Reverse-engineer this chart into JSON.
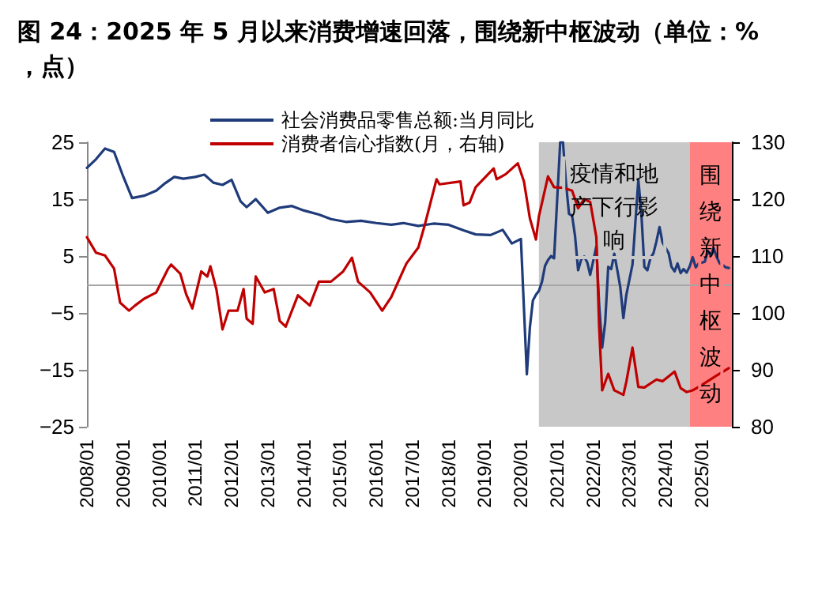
{
  "chart_data": {
    "type": "line",
    "title": "图 24：2025 年 5 月以来消费增速回落，围绕新中枢波动（单位：%，点）",
    "xlim": [
      "2008-01",
      "2025-11"
    ],
    "xticks": [
      {
        "value": "2008-01",
        "label": "2008/01"
      },
      {
        "value": "2009-01",
        "label": "2009/01"
      },
      {
        "value": "2010-01",
        "label": "2010/01"
      },
      {
        "value": "2011-01",
        "label": "2011/01"
      },
      {
        "value": "2012-01",
        "label": "2012/01"
      },
      {
        "value": "2013-01",
        "label": "2013/01"
      },
      {
        "value": "2014-01",
        "label": "2014/01"
      },
      {
        "value": "2015-01",
        "label": "2015/01"
      },
      {
        "value": "2016-01",
        "label": "2016/01"
      },
      {
        "value": "2017-01",
        "label": "2017/01"
      },
      {
        "value": "2018-01",
        "label": "2018/01"
      },
      {
        "value": "2019-01",
        "label": "2019/01"
      },
      {
        "value": "2020-01",
        "label": "2020/01"
      },
      {
        "value": "2021-01",
        "label": "2021/01"
      },
      {
        "value": "2022-01",
        "label": "2022/01"
      },
      {
        "value": "2023-01",
        "label": "2023/01"
      },
      {
        "value": "2024-01",
        "label": "2024/01"
      },
      {
        "value": "2025-01",
        "label": "2025/01"
      }
    ],
    "ylim": [
      -25,
      25
    ],
    "yticks": [
      {
        "value": -25,
        "label": "−25"
      },
      {
        "value": -15,
        "label": "−15"
      },
      {
        "value": -5,
        "label": "−5"
      },
      5,
      15,
      25
    ],
    "y2lim": [
      80,
      130
    ],
    "y2ticks": [
      80,
      90,
      100,
      110,
      120,
      130
    ],
    "legend": "top",
    "grid": false,
    "marker": "none",
    "line_style": "solid",
    "ref_lines": [
      {
        "axis": "y",
        "value": 0,
        "color": "#a6a6a6"
      }
    ],
    "bands": [
      {
        "axis": "x",
        "from": "2020-07",
        "to": "2024-09",
        "label": "疫情和地产下行影响",
        "color": "#c8c8c8"
      },
      {
        "axis": "x",
        "from": "2024-09",
        "to": "2025-11",
        "label": "围绕新中枢波动",
        "color": "#ff8080"
      }
    ],
    "series": [
      {
        "name": "社会消费品零售总额:当月同比",
        "color": "#1f3b7a",
        "x": [
          "2008-01",
          "2008-04",
          "2008-07",
          "2008-10",
          "2009-01",
          "2009-04",
          "2009-08",
          "2009-12",
          "2010-03",
          "2010-06",
          "2010-09",
          "2011-01",
          "2011-04",
          "2011-07",
          "2011-10",
          "2012-01",
          "2012-04",
          "2012-06",
          "2012-09",
          "2013-01",
          "2013-05",
          "2013-09",
          "2014-01",
          "2014-06",
          "2014-10",
          "2015-03",
          "2015-08",
          "2016-01",
          "2016-06",
          "2016-10",
          "2017-03",
          "2017-08",
          "2018-01",
          "2018-06",
          "2018-10",
          "2019-03",
          "2019-07",
          "2019-10",
          "2020-01",
          "2020-03",
          "2020-04",
          "2020-05",
          "2020-06",
          "2020-07",
          "2020-08",
          "2020-09",
          "2020-10",
          "2020-11",
          "2020-12",
          "2021-02",
          "2021-03",
          "2021-04",
          "2021-05",
          "2021-06",
          "2021-07",
          "2021-08",
          "2021-09",
          "2021-10",
          "2021-11",
          "2021-12",
          "2022-02",
          "2022-03",
          "2022-04",
          "2022-05",
          "2022-06",
          "2022-07",
          "2022-08",
          "2022-09",
          "2022-10",
          "2022-11",
          "2022-12",
          "2023-02",
          "2023-03",
          "2023-04",
          "2023-05",
          "2023-06",
          "2023-07",
          "2023-08",
          "2023-09",
          "2023-10",
          "2023-11",
          "2023-12",
          "2024-02",
          "2024-03",
          "2024-04",
          "2024-05",
          "2024-06",
          "2024-07",
          "2024-08",
          "2024-09",
          "2024-10",
          "2024-11",
          "2024-12",
          "2025-02",
          "2025-03",
          "2025-04",
          "2025-05",
          "2025-06",
          "2025-07",
          "2025-08",
          "2025-09",
          "2025-10"
        ],
        "values": [
          20.5,
          22.0,
          23.9,
          23.3,
          19.0,
          15.2,
          15.6,
          16.5,
          17.8,
          18.9,
          18.6,
          18.9,
          19.3,
          17.9,
          17.5,
          18.4,
          14.6,
          13.6,
          15.0,
          12.6,
          13.5,
          13.8,
          13.0,
          12.3,
          11.5,
          11.0,
          11.2,
          10.8,
          10.5,
          10.8,
          10.3,
          10.7,
          10.5,
          9.5,
          8.8,
          8.7,
          9.6,
          7.2,
          8.0,
          -15.8,
          -7.5,
          -2.8,
          -1.8,
          -1.1,
          0.5,
          3.3,
          4.3,
          5.0,
          4.6,
          25,
          25,
          17.7,
          12.4,
          12.1,
          8.5,
          2.5,
          4.4,
          4.9,
          3.9,
          1.7,
          6.7,
          -3.5,
          -11.1,
          -6.7,
          3.1,
          2.7,
          5.4,
          2.5,
          -0.5,
          -5.9,
          -1.8,
          3.5,
          10.6,
          18.4,
          12.7,
          3.1,
          2.5,
          4.6,
          5.5,
          7.6,
          10.1,
          7.4,
          5.5,
          3.1,
          2.3,
          3.7,
          2.0,
          2.7,
          2.1,
          3.2,
          4.8,
          3.0,
          3.7,
          4.0,
          5.9,
          5.1,
          6.4,
          4.8,
          3.7,
          3.4,
          3.0,
          2.9
        ]
      },
      {
        "name": "消费者信心指数(月，右轴)",
        "color": "#c00000",
        "axis": "y2",
        "x": [
          "2008-01",
          "2008-04",
          "2008-07",
          "2008-10",
          "2008-12",
          "2009-03",
          "2009-05",
          "2009-08",
          "2009-12",
          "2010-04",
          "2010-05",
          "2010-08",
          "2010-10",
          "2010-12",
          "2011-03",
          "2011-05",
          "2011-06",
          "2011-08",
          "2011-10",
          "2011-12",
          "2012-03",
          "2012-05",
          "2012-06",
          "2012-08",
          "2012-09",
          "2012-12",
          "2013-03",
          "2013-05",
          "2013-07",
          "2013-11",
          "2014-03",
          "2014-06",
          "2014-10",
          "2015-02",
          "2015-05",
          "2015-07",
          "2015-11",
          "2016-03",
          "2016-06",
          "2016-11",
          "2017-03",
          "2017-05",
          "2017-09",
          "2017-10",
          "2018-05",
          "2018-06",
          "2018-08",
          "2018-10",
          "2019-04",
          "2019-05",
          "2019-08",
          "2019-12",
          "2020-02",
          "2020-04",
          "2020-06",
          "2020-07",
          "2020-10",
          "2020-12",
          "2021-03",
          "2021-06",
          "2021-08",
          "2021-10",
          "2021-12",
          "2022-02",
          "2022-03",
          "2022-04",
          "2022-06",
          "2022-08",
          "2022-11",
          "2022-12",
          "2023-02",
          "2023-04",
          "2023-06",
          "2023-10",
          "2023-12",
          "2024-04",
          "2024-06",
          "2024-08",
          "2024-10",
          "2024-12",
          "2025-06",
          "2025-10"
        ],
        "values": [
          113.3,
          110.6,
          110.1,
          107.8,
          101.8,
          100.4,
          101.3,
          102.5,
          103.6,
          107.8,
          108.5,
          106.9,
          103.2,
          100.8,
          107.3,
          106.4,
          108.2,
          104.1,
          97.1,
          100.4,
          100.4,
          104.2,
          99.0,
          98.1,
          106.4,
          103.6,
          104.2,
          98.6,
          97.6,
          103.1,
          101.3,
          105.5,
          105.5,
          107.3,
          109.7,
          105.5,
          103.6,
          100.4,
          102.8,
          108.7,
          111.5,
          115.2,
          123.5,
          122.6,
          123.1,
          118.9,
          119.4,
          122.1,
          125.4,
          123.5,
          124.4,
          126.3,
          123.1,
          116.6,
          112.9,
          117.0,
          124.0,
          122.1,
          122.0,
          121.5,
          118.4,
          120.0,
          119.5,
          113.3,
          97.6,
          86.4,
          89.3,
          86.4,
          85.6,
          87.9,
          93.9,
          87.0,
          86.9,
          88.3,
          88.0,
          89.7,
          86.8,
          86.1,
          86.4,
          87.0,
          89.0,
          90.3
        ]
      }
    ]
  }
}
